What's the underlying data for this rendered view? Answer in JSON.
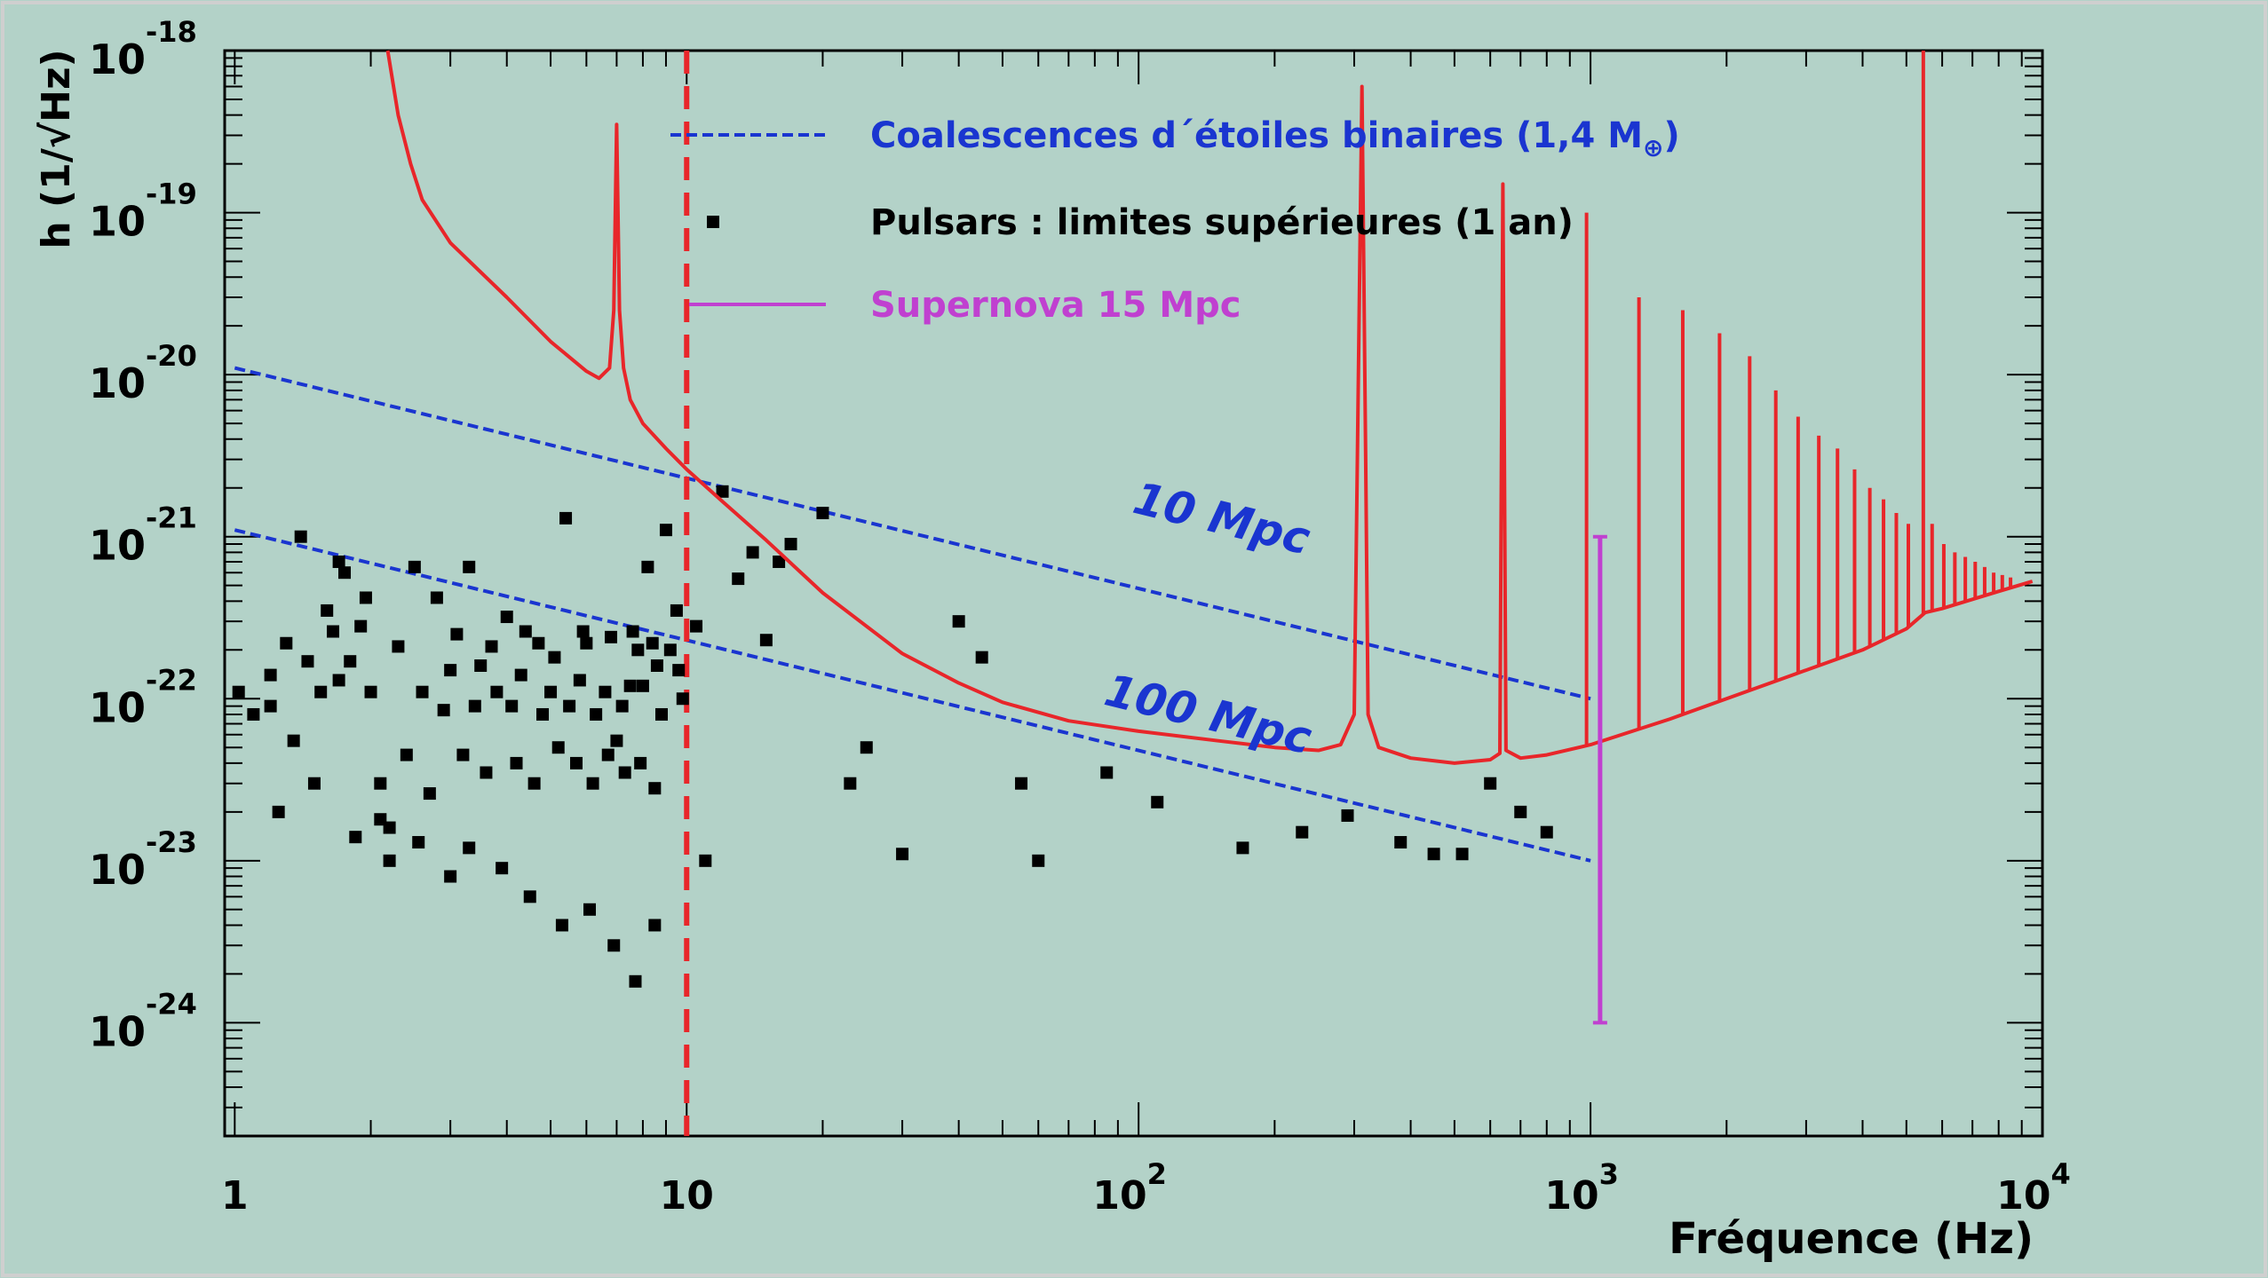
{
  "chart_data": {
    "type": "line",
    "xscale": "log",
    "yscale": "log",
    "xlim": [
      0.95,
      10000
    ],
    "ylim": [
      2e-25,
      1e-18
    ],
    "x_ticks": [
      {
        "value": 1,
        "base": "1",
        "exp": ""
      },
      {
        "value": 10,
        "base": "10",
        "exp": ""
      },
      {
        "value": 100,
        "base": "10",
        "exp": "2"
      },
      {
        "value": 1000,
        "base": "10",
        "exp": "3"
      },
      {
        "value": 10000,
        "base": "10",
        "exp": "4"
      }
    ],
    "y_ticks": [
      {
        "value": 1e-24,
        "base": "10",
        "exp": "-24"
      },
      {
        "value": 1e-23,
        "base": "10",
        "exp": "-23"
      },
      {
        "value": 1e-22,
        "base": "10",
        "exp": "-22"
      },
      {
        "value": 1e-21,
        "base": "10",
        "exp": "-21"
      },
      {
        "value": 1e-20,
        "base": "10",
        "exp": "-20"
      },
      {
        "value": 1e-19,
        "base": "10",
        "exp": "-19"
      },
      {
        "value": 1e-18,
        "base": "10",
        "exp": "-18"
      }
    ],
    "xlabel": "Fréquence (Hz)",
    "ylabel": "h (1/√Hz)",
    "colors": {
      "background": "#b3d2c8",
      "sensitivity": "#e8262a",
      "binaries": "#1a35d0",
      "pulsars": "#000000",
      "supernova": "#c040d0",
      "cutoff": "#e8262a"
    },
    "legend": {
      "placement": "top-center",
      "entries": [
        {
          "label": "Coalescences d´étoiles binaires (1,4 M",
          "sub": "⊕",
          "suffix": ")",
          "series": "binaries"
        },
        {
          "label": "Pulsars : limites supérieures (1 an)",
          "series": "pulsars"
        },
        {
          "label": "Supernova 15 Mpc",
          "series": "supernova"
        }
      ]
    },
    "series": [
      {
        "id": "sensitivity",
        "type": "line",
        "points": [
          [
            2.18,
            1e-18
          ],
          [
            2.3,
            4e-19
          ],
          [
            2.45,
            2e-19
          ],
          [
            2.6,
            1.2e-19
          ],
          [
            3.0,
            6.5e-20
          ],
          [
            4.0,
            3e-20
          ],
          [
            5.0,
            1.6e-20
          ],
          [
            6.0,
            1.05e-20
          ],
          [
            6.4,
            9.5e-21
          ],
          [
            6.75,
            1.1e-20
          ],
          [
            6.9,
            2.5e-20
          ],
          [
            7.0,
            3.5e-19
          ],
          [
            7.1,
            2.5e-20
          ],
          [
            7.25,
            1.1e-20
          ],
          [
            7.5,
            7e-21
          ],
          [
            8.0,
            5e-21
          ],
          [
            9.0,
            3.5e-21
          ],
          [
            10.0,
            2.6e-21
          ],
          [
            12.0,
            1.65e-21
          ],
          [
            15.0,
            9.5e-22
          ],
          [
            20.0,
            4.5e-22
          ],
          [
            30.0,
            1.9e-22
          ],
          [
            40.0,
            1.25e-22
          ],
          [
            50.0,
            9.5e-23
          ],
          [
            70.0,
            7.3e-23
          ],
          [
            100.0,
            6.3e-23
          ],
          [
            150.0,
            5.5e-23
          ],
          [
            200.0,
            5e-23
          ],
          [
            250.0,
            4.8e-23
          ],
          [
            280.0,
            5.2e-23
          ],
          [
            300.0,
            8e-23
          ],
          [
            312.0,
            6e-19
          ],
          [
            318.0,
            3e-21
          ],
          [
            322.0,
            8e-23
          ],
          [
            340.0,
            5e-23
          ],
          [
            400.0,
            4.3e-23
          ],
          [
            500.0,
            4e-23
          ],
          [
            600.0,
            4.2e-23
          ],
          [
            630.0,
            4.6e-23
          ],
          [
            640.0,
            1.5e-19
          ],
          [
            650.0,
            4.8e-23
          ],
          [
            700.0,
            4.3e-23
          ],
          [
            800.0,
            4.5e-23
          ],
          [
            1000.0,
            5.2e-23
          ],
          [
            1500.0,
            7.5e-23
          ],
          [
            2000.0,
            1e-22
          ],
          [
            3000.0,
            1.5e-22
          ],
          [
            4000.0,
            2e-22
          ],
          [
            5000.0,
            2.7e-22
          ],
          [
            5500.0,
            3.4e-22
          ],
          [
            6000.0,
            3.6e-22
          ],
          [
            8000.0,
            4.6e-22
          ],
          [
            9500.0,
            5.3e-22
          ]
        ],
        "spikes": [
          [
            980,
            1e-19
          ],
          [
            1280,
            3e-20
          ],
          [
            1600,
            2.5e-20
          ],
          [
            1930,
            1.8e-20
          ],
          [
            2250,
            1.3e-20
          ],
          [
            2570,
            8e-21
          ],
          [
            2880,
            5.5e-21
          ],
          [
            3200,
            4.2e-21
          ],
          [
            3520,
            3.5e-21
          ],
          [
            3840,
            2.6e-21
          ],
          [
            4150,
            2e-21
          ],
          [
            4450,
            1.7e-21
          ],
          [
            4750,
            1.4e-21
          ],
          [
            5050,
            1.2e-21
          ],
          [
            5450,
            1e-18
          ],
          [
            5700,
            1.2e-21
          ],
          [
            6050,
            9e-22
          ],
          [
            6400,
            8e-22
          ],
          [
            6750,
            7.5e-22
          ],
          [
            7100,
            7e-22
          ],
          [
            7450,
            6.5e-22
          ],
          [
            7800,
            6e-22
          ],
          [
            8150,
            5.8e-22
          ],
          [
            8500,
            5.6e-22
          ]
        ]
      },
      {
        "id": "binaries-10mpc",
        "type": "line",
        "label": "10 Mpc",
        "label_at": [
          150,
          1.05e-21
        ],
        "points": [
          [
            1,
            1.1e-20
          ],
          [
            1000,
            1e-22
          ]
        ]
      },
      {
        "id": "binaries-100mpc",
        "type": "line",
        "label": "100 Mpc",
        "label_at": [
          140,
          6.5e-23
        ],
        "points": [
          [
            1,
            1.1e-21
          ],
          [
            1000,
            1e-23
          ]
        ]
      },
      {
        "id": "cutoff",
        "type": "line",
        "points": [
          [
            10,
            1e-18
          ],
          [
            10,
            2e-25
          ]
        ]
      },
      {
        "id": "supernova",
        "type": "errorbar",
        "points": [
          [
            1050,
            1e-24
          ],
          [
            1050,
            1e-21
          ]
        ]
      }
    ],
    "pulsars": [
      [
        1.02,
        1.1e-22
      ],
      [
        1.1,
        8e-23
      ],
      [
        1.2,
        1.4e-22
      ],
      [
        1.3,
        2.2e-22
      ],
      [
        1.45,
        1.7e-22
      ],
      [
        1.6,
        3.5e-22
      ],
      [
        1.7,
        7e-22
      ],
      [
        1.75,
        6e-22
      ],
      [
        1.9,
        2.8e-22
      ],
      [
        1.95,
        4.2e-22
      ],
      [
        2.1,
        1.8e-23
      ],
      [
        2.2,
        1.6e-23
      ],
      [
        2.5,
        6.5e-22
      ],
      [
        2.8,
        4.2e-22
      ],
      [
        3.0,
        1.5e-22
      ],
      [
        3.3,
        6.5e-22
      ],
      [
        3.5,
        1.6e-22
      ],
      [
        3.8,
        1.1e-22
      ],
      [
        4.0,
        3.2e-22
      ],
      [
        4.3,
        1.4e-22
      ],
      [
        4.7,
        2.2e-22
      ],
      [
        5.0,
        1.1e-22
      ],
      [
        5.4,
        1.3e-21
      ],
      [
        5.8,
        1.3e-22
      ],
      [
        6.0,
        2.2e-22
      ],
      [
        6.6,
        1.1e-22
      ],
      [
        7.0,
        5.5e-23
      ],
      [
        7.5,
        1.2e-22
      ],
      [
        7.8,
        2e-22
      ],
      [
        8.2,
        6.5e-22
      ],
      [
        8.6,
        1.6e-22
      ],
      [
        9.0,
        1.1e-21
      ],
      [
        9.5,
        3.5e-22
      ],
      [
        9.8,
        1e-22
      ],
      [
        10.5,
        2.8e-22
      ],
      [
        11.0,
        1e-23
      ],
      [
        12.0,
        1.9e-21
      ],
      [
        13.0,
        5.5e-22
      ],
      [
        14.0,
        8e-22
      ],
      [
        15.0,
        2.3e-22
      ],
      [
        16.0,
        7e-22
      ],
      [
        17.0,
        9e-22
      ],
      [
        20.0,
        1.4e-21
      ],
      [
        23.0,
        3e-23
      ],
      [
        25.0,
        5e-23
      ],
      [
        30.0,
        1.1e-23
      ],
      [
        40.0,
        3e-22
      ],
      [
        45.0,
        1.8e-22
      ],
      [
        55.0,
        3e-23
      ],
      [
        60.0,
        1e-23
      ],
      [
        85.0,
        3.5e-23
      ],
      [
        110.0,
        2.3e-23
      ],
      [
        170.0,
        1.2e-23
      ],
      [
        230.0,
        1.5e-23
      ],
      [
        290.0,
        1.9e-23
      ],
      [
        380.0,
        1.3e-23
      ],
      [
        450.0,
        1.1e-23
      ],
      [
        520.0,
        1.1e-23
      ],
      [
        600.0,
        3e-23
      ],
      [
        700.0,
        2e-23
      ],
      [
        800.0,
        1.5e-23
      ],
      [
        1.2,
        9e-23
      ],
      [
        1.35,
        5.5e-23
      ],
      [
        1.55,
        1.1e-22
      ],
      [
        1.65,
        2.6e-22
      ],
      [
        1.8,
        1.7e-22
      ],
      [
        2.0,
        1.1e-22
      ],
      [
        2.3,
        2.1e-22
      ],
      [
        2.6,
        1.1e-22
      ],
      [
        2.9,
        8.5e-23
      ],
      [
        3.1,
        2.5e-22
      ],
      [
        3.4,
        9e-23
      ],
      [
        3.7,
        2.1e-22
      ],
      [
        4.1,
        9e-23
      ],
      [
        4.4,
        2.6e-22
      ],
      [
        4.8,
        8e-23
      ],
      [
        5.1,
        1.8e-22
      ],
      [
        5.5,
        9e-23
      ],
      [
        5.9,
        2.6e-22
      ],
      [
        6.3,
        8e-23
      ],
      [
        6.8,
        2.4e-22
      ],
      [
        7.2,
        9e-23
      ],
      [
        7.6,
        2.6e-22
      ],
      [
        8.0,
        1.2e-22
      ],
      [
        8.4,
        2.2e-22
      ],
      [
        8.8,
        8e-23
      ],
      [
        9.2,
        2e-22
      ],
      [
        9.6,
        1.5e-22
      ],
      [
        1.4,
        1e-21
      ],
      [
        1.7,
        1.3e-22
      ],
      [
        2.1,
        3e-23
      ],
      [
        2.4,
        4.5e-23
      ],
      [
        2.7,
        2.6e-23
      ],
      [
        3.2,
        4.5e-23
      ],
      [
        3.6,
        3.5e-23
      ],
      [
        4.2,
        4e-23
      ],
      [
        4.6,
        3e-23
      ],
      [
        5.2,
        5e-23
      ],
      [
        5.7,
        4e-23
      ],
      [
        6.2,
        3e-23
      ],
      [
        6.7,
        4.5e-23
      ],
      [
        7.3,
        3.5e-23
      ],
      [
        7.9,
        4e-23
      ],
      [
        8.5,
        2.8e-23
      ],
      [
        1.25,
        2e-23
      ],
      [
        1.5,
        3e-23
      ],
      [
        1.85,
        1.4e-23
      ],
      [
        2.2,
        1e-23
      ],
      [
        2.55,
        1.3e-23
      ],
      [
        3.0,
        8e-24
      ],
      [
        3.3,
        1.2e-23
      ],
      [
        3.9,
        9e-24
      ],
      [
        4.5,
        6e-24
      ],
      [
        5.3,
        4e-24
      ],
      [
        6.1,
        5e-24
      ],
      [
        6.9,
        3e-24
      ],
      [
        7.7,
        1.8e-24
      ],
      [
        8.5,
        4e-24
      ]
    ]
  }
}
